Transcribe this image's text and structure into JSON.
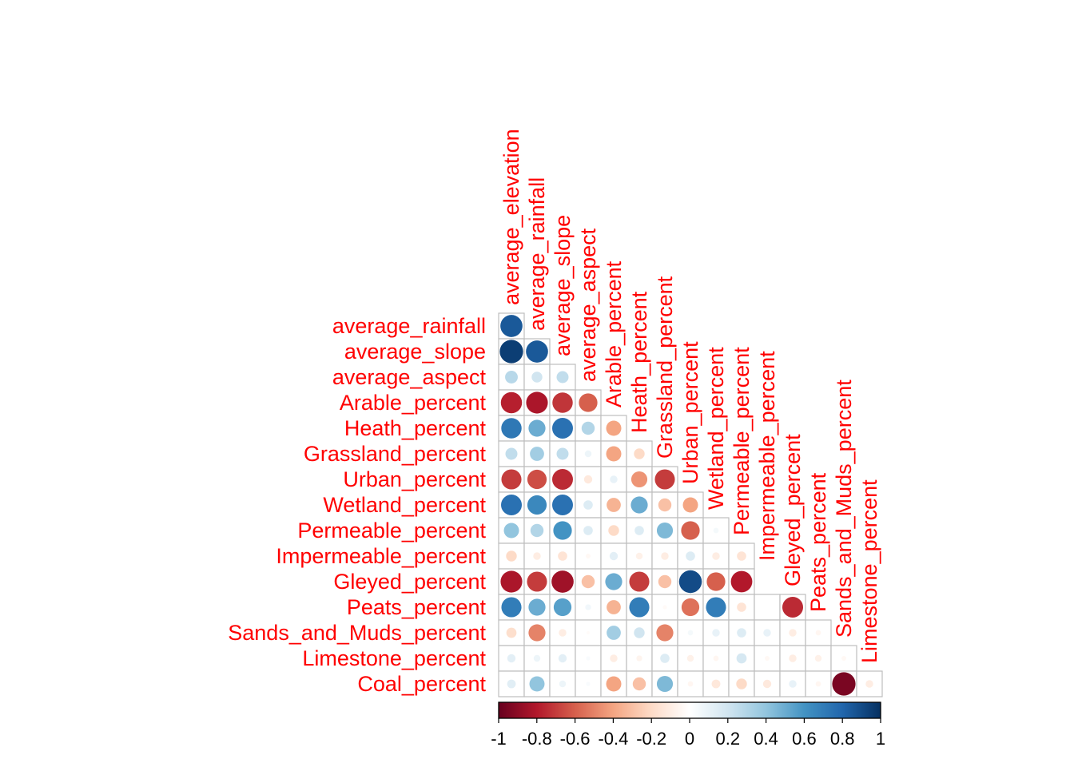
{
  "chart_data": {
    "type": "heatmap",
    "style": "correlation-circles-lower-triangle",
    "label_color": "#FF0000",
    "grid_color": "#BEBEBE",
    "variables": [
      "average_elevation",
      "average_rainfall",
      "average_slope",
      "average_aspect",
      "Arable_percent",
      "Heath_percent",
      "Grassland_percent",
      "Urban_percent",
      "Wetland_percent",
      "Permeable_percent",
      "Impermeable_percent",
      "Gleyed_percent",
      "Peats_percent",
      "Sands_and_Muds_percent",
      "Limestone_percent",
      "Coal_percent"
    ],
    "rows": [
      "average_rainfall",
      "average_slope",
      "average_aspect",
      "Arable_percent",
      "Heath_percent",
      "Grassland_percent",
      "Urban_percent",
      "Wetland_percent",
      "Permeable_percent",
      "Impermeable_percent",
      "Gleyed_percent",
      "Peats_percent",
      "Sands_and_Muds_percent",
      "Limestone_percent",
      "Coal_percent"
    ],
    "columns": [
      "average_elevation",
      "average_rainfall",
      "average_slope",
      "average_aspect",
      "Arable_percent",
      "Heath_percent",
      "Grassland_percent",
      "Urban_percent",
      "Wetland_percent",
      "Permeable_percent",
      "Impermeable_percent",
      "Gleyed_percent",
      "Peats_percent",
      "Sands_and_Muds_percent",
      "Limestone_percent"
    ],
    "matrix": [
      [
        0.85
      ],
      [
        0.95,
        0.85
      ],
      [
        0.28,
        0.2,
        0.25
      ],
      [
        -0.78,
        -0.82,
        -0.72,
        -0.6
      ],
      [
        0.72,
        0.5,
        0.75,
        0.3,
        -0.4
      ],
      [
        0.25,
        0.35,
        0.25,
        0.08,
        -0.4,
        -0.2
      ],
      [
        -0.7,
        -0.65,
        -0.75,
        -0.12,
        0.1,
        -0.45,
        -0.7
      ],
      [
        0.75,
        0.65,
        0.75,
        0.15,
        -0.35,
        0.5,
        -0.3,
        -0.4
      ],
      [
        0.4,
        0.3,
        0.6,
        0.15,
        -0.2,
        0.15,
        0.45,
        -0.6,
        0.05
      ],
      [
        -0.2,
        -0.1,
        -0.15,
        -0.04,
        0.12,
        -0.08,
        -0.1,
        0.15,
        -0.1,
        -0.15
      ],
      [
        -0.82,
        -0.7,
        -0.85,
        -0.3,
        0.5,
        -0.7,
        -0.3,
        0.9,
        -0.6,
        -0.8
      ],
      [
        0.7,
        0.5,
        0.55,
        0.06,
        -0.35,
        0.7,
        -0.03,
        -0.55,
        0.7,
        -0.15,
        0.0,
        -0.75
      ],
      [
        -0.18,
        -0.5,
        -0.1,
        -0.02,
        0.35,
        0.2,
        -0.5,
        0.05,
        0.1,
        0.15,
        0.1,
        -0.1,
        -0.05
      ],
      [
        0.12,
        0.08,
        0.12,
        0.03,
        -0.1,
        -0.06,
        0.15,
        -0.08,
        -0.05,
        0.18,
        -0.04,
        -0.1,
        -0.08,
        -0.04
      ],
      [
        0.13,
        0.4,
        0.08,
        0.03,
        -0.4,
        -0.3,
        0.45,
        -0.05,
        -0.13,
        -0.2,
        -0.12,
        0.1,
        -0.05,
        -0.95,
        -0.1
      ]
    ],
    "colorbar": {
      "min": -1,
      "max": 1,
      "ticks": [
        "-1",
        "-0.8",
        "-0.6",
        "-0.4",
        "-0.2",
        "0",
        "0.2",
        "0.4",
        "0.6",
        "0.8",
        "1"
      ],
      "colors": [
        "#67001F",
        "#B2182B",
        "#D6604D",
        "#F4A582",
        "#FDDBC7",
        "#FFFFFF",
        "#D1E5F0",
        "#92C5DE",
        "#4393C3",
        "#2166AC",
        "#053061"
      ]
    }
  }
}
